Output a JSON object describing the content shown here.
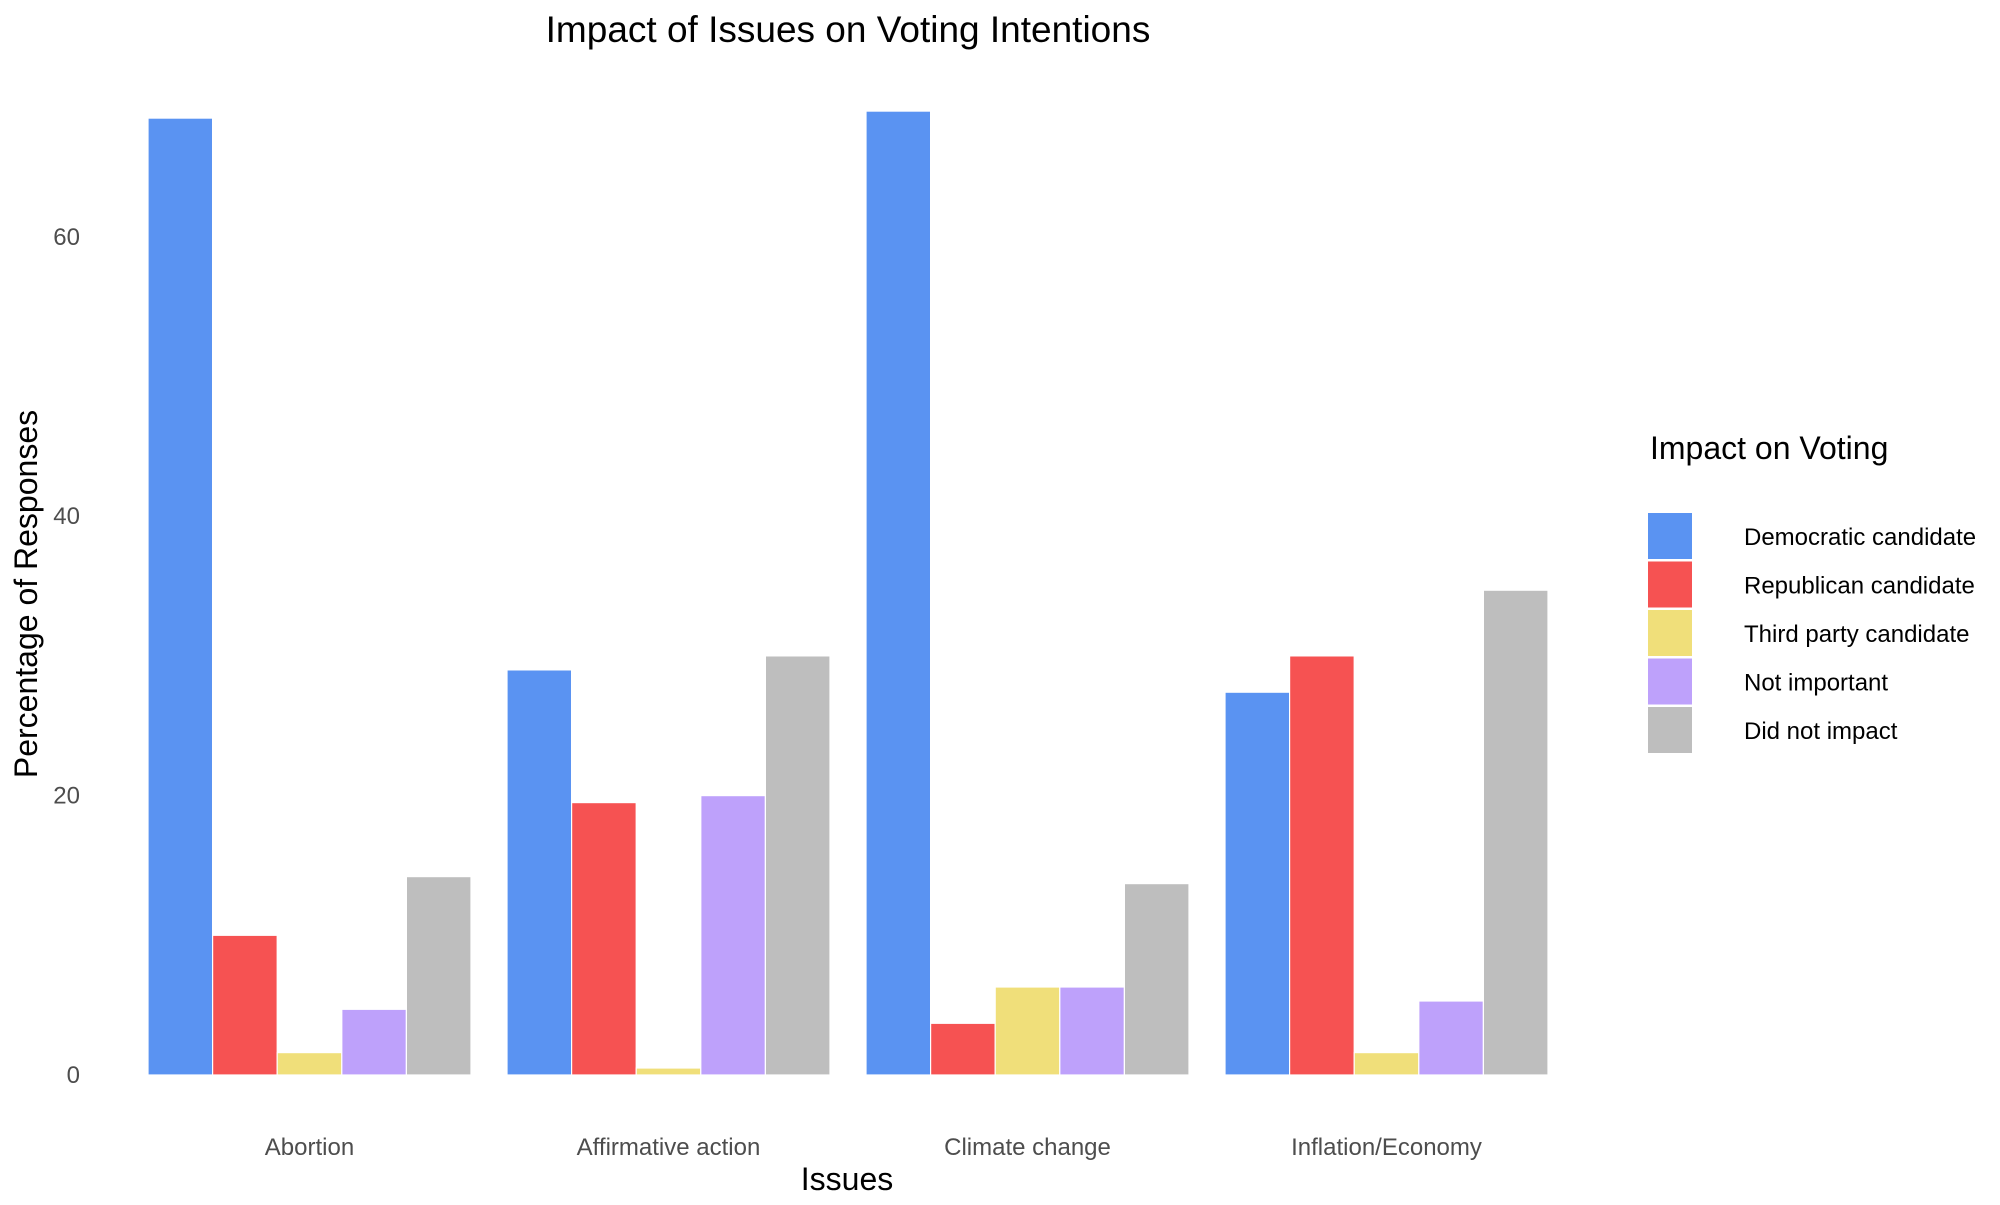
{
  "chart_data": {
    "type": "bar",
    "title": "Impact of Issues on Voting Intentions",
    "xlabel": "Issues",
    "ylabel": "Percentage of Responses",
    "categories": [
      "Abortion",
      "Affirmative action",
      "Climate change",
      "Inflation/Economy"
    ],
    "ylim": [
      0,
      69
    ],
    "yticks": [
      0,
      20,
      40,
      60
    ],
    "grid": false,
    "legend": {
      "title": "Impact on Voting",
      "position": "right"
    },
    "series": [
      {
        "name": "Democratic candidate",
        "color": "#5a93f2",
        "values": [
          68.5,
          29.0,
          69.0,
          27.4
        ]
      },
      {
        "name": "Republican candidate",
        "color": "#f65252",
        "values": [
          10.0,
          19.5,
          3.7,
          30.0
        ]
      },
      {
        "name": "Third party candidate",
        "color": "#f0df7a",
        "values": [
          1.6,
          0.5,
          6.3,
          1.6
        ]
      },
      {
        "name": "Not important",
        "color": "#bea1fb",
        "values": [
          4.7,
          20.0,
          6.3,
          5.3
        ]
      },
      {
        "name": "Did not impact",
        "color": "#bebebe",
        "values": [
          14.2,
          30.0,
          13.7,
          34.7
        ]
      }
    ]
  }
}
